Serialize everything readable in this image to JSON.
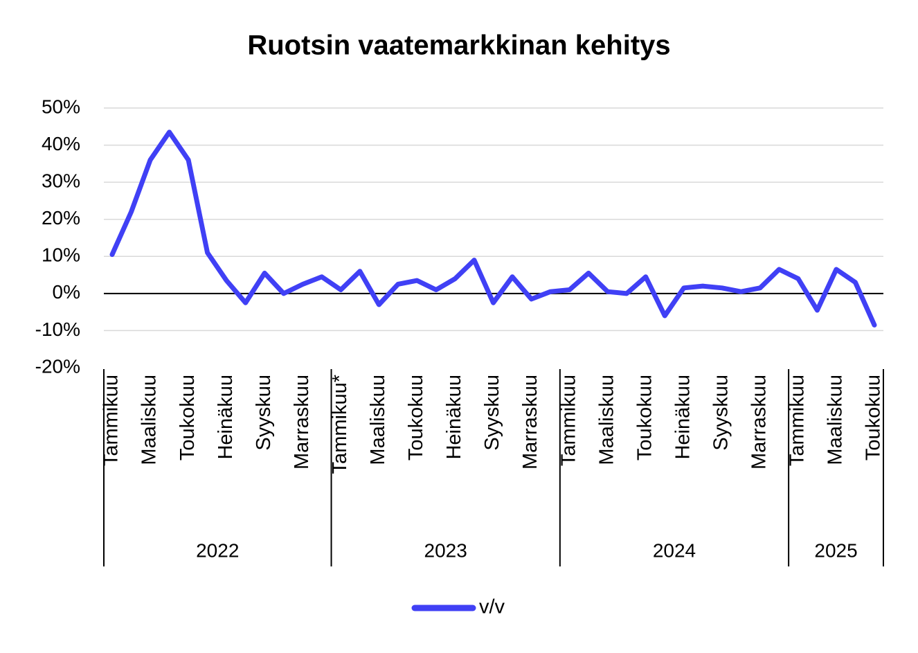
{
  "chart_data": {
    "type": "line",
    "title": "Ruotsin vaatemarkkinan kehitys",
    "categories": [
      "Tammikuu",
      null,
      "Maaliskuu",
      null,
      "Toukokuu",
      null,
      "Heinäkuu",
      null,
      "Syyskuu",
      null,
      "Marraskuu",
      null,
      "Tammikuu*",
      null,
      "Maaliskuu",
      null,
      "Toukokuu",
      null,
      "Heinäkuu",
      null,
      "Syyskuu",
      null,
      "Marraskuu",
      null,
      "Tammikuu",
      null,
      "Maaliskuu",
      null,
      "Toukokuu",
      null,
      "Heinäkuu",
      null,
      "Syyskuu",
      null,
      "Marraskuu",
      null,
      "Tammikuu",
      null,
      "Maaliskuu",
      null,
      "Toukokuu"
    ],
    "x_groups": [
      {
        "label": "2022",
        "size": 12
      },
      {
        "label": "2023",
        "size": 12
      },
      {
        "label": "2024",
        "size": 12
      },
      {
        "label": "2025",
        "size": 5
      }
    ],
    "series": [
      {
        "name": "v/v",
        "color": "#4040f5",
        "values": [
          10.5,
          22,
          36,
          43.5,
          36,
          11,
          3.5,
          -2.5,
          5.5,
          0,
          2.5,
          4.5,
          1,
          6,
          -3,
          2.5,
          3.5,
          1,
          4,
          9,
          -2.5,
          4.5,
          -1.5,
          0.5,
          1,
          5.5,
          0.5,
          0,
          4.5,
          -6,
          1.5,
          2,
          1.5,
          0.5,
          1.5,
          6.5,
          4,
          -4.5,
          6.5,
          3,
          -8.5
        ]
      }
    ],
    "ylim": [
      -20,
      50
    ],
    "yticks": [
      {
        "value": -20,
        "label": "-20%"
      },
      {
        "value": -10,
        "label": "-10%"
      },
      {
        "value": 0,
        "label": "0%"
      },
      {
        "value": 10,
        "label": "10%"
      },
      {
        "value": 20,
        "label": "20%"
      },
      {
        "value": 30,
        "label": "30%"
      },
      {
        "value": 40,
        "label": "40%"
      },
      {
        "value": 50,
        "label": "50%"
      }
    ],
    "grid": true,
    "legend": "bottom"
  }
}
